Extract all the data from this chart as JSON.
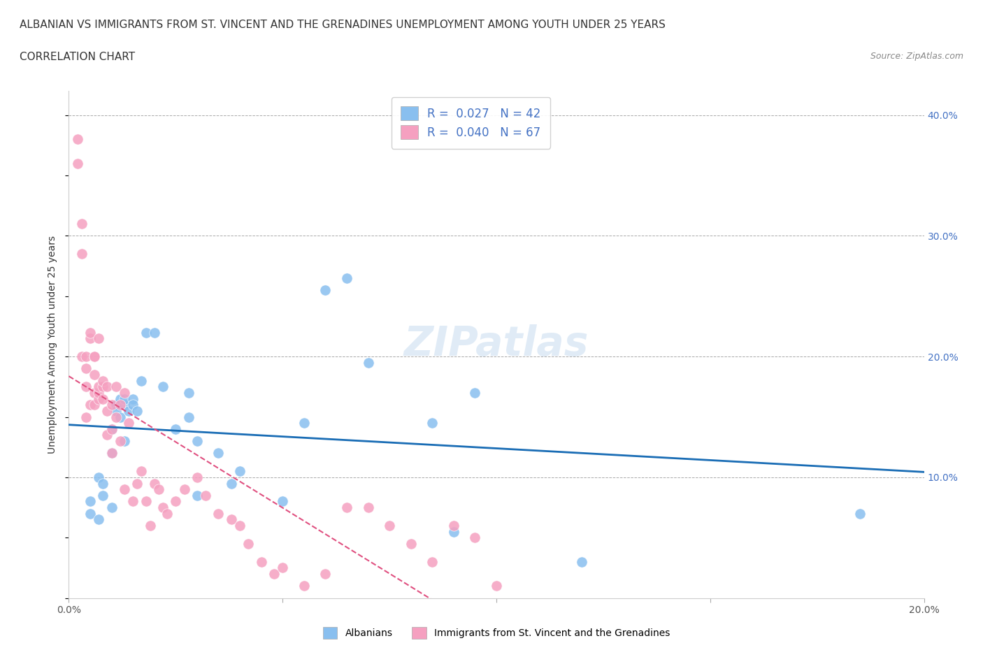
{
  "title_line1": "ALBANIAN VS IMMIGRANTS FROM ST. VINCENT AND THE GRENADINES UNEMPLOYMENT AMONG YOUTH UNDER 25 YEARS",
  "title_line2": "CORRELATION CHART",
  "source_text": "Source: ZipAtlas.com",
  "ylabel": "Unemployment Among Youth under 25 years",
  "xlim": [
    0.0,
    0.2
  ],
  "ylim": [
    0.0,
    0.42
  ],
  "xticks": [
    0.0,
    0.05,
    0.1,
    0.15,
    0.2
  ],
  "xtick_labels": [
    "0.0%",
    "",
    "",
    "",
    "20.0%"
  ],
  "ytick_labels_right": [
    "",
    "10.0%",
    "20.0%",
    "30.0%",
    "40.0%"
  ],
  "yticks": [
    0.0,
    0.1,
    0.2,
    0.3,
    0.4
  ],
  "color_albanian": "#89BFEF",
  "color_svg": "#F5A0C0",
  "line_color_albanian": "#1a6db5",
  "line_color_svg": "#e05080",
  "R_albanian": 0.027,
  "N_albanian": 42,
  "R_svg": 0.04,
  "N_svg": 67,
  "watermark": "ZIPatlas",
  "albanian_x": [
    0.005,
    0.005,
    0.007,
    0.007,
    0.008,
    0.008,
    0.01,
    0.01,
    0.01,
    0.011,
    0.011,
    0.012,
    0.012,
    0.013,
    0.013,
    0.013,
    0.014,
    0.015,
    0.015,
    0.016,
    0.017,
    0.018,
    0.02,
    0.022,
    0.025,
    0.028,
    0.028,
    0.03,
    0.03,
    0.035,
    0.038,
    0.04,
    0.05,
    0.055,
    0.06,
    0.065,
    0.07,
    0.085,
    0.09,
    0.095,
    0.12,
    0.185
  ],
  "albanian_y": [
    0.08,
    0.07,
    0.065,
    0.1,
    0.085,
    0.095,
    0.075,
    0.12,
    0.14,
    0.16,
    0.155,
    0.15,
    0.165,
    0.13,
    0.16,
    0.165,
    0.155,
    0.165,
    0.16,
    0.155,
    0.18,
    0.22,
    0.22,
    0.175,
    0.14,
    0.17,
    0.15,
    0.13,
    0.085,
    0.12,
    0.095,
    0.105,
    0.08,
    0.145,
    0.255,
    0.265,
    0.195,
    0.145,
    0.055,
    0.17,
    0.03,
    0.07
  ],
  "svgrenadin_x": [
    0.002,
    0.002,
    0.003,
    0.003,
    0.003,
    0.004,
    0.004,
    0.004,
    0.004,
    0.005,
    0.005,
    0.005,
    0.006,
    0.006,
    0.006,
    0.006,
    0.006,
    0.007,
    0.007,
    0.007,
    0.007,
    0.008,
    0.008,
    0.008,
    0.009,
    0.009,
    0.009,
    0.01,
    0.01,
    0.01,
    0.011,
    0.011,
    0.012,
    0.012,
    0.013,
    0.013,
    0.014,
    0.015,
    0.016,
    0.017,
    0.018,
    0.019,
    0.02,
    0.021,
    0.022,
    0.023,
    0.025,
    0.027,
    0.03,
    0.032,
    0.035,
    0.038,
    0.04,
    0.042,
    0.045,
    0.048,
    0.05,
    0.055,
    0.06,
    0.065,
    0.07,
    0.075,
    0.08,
    0.085,
    0.09,
    0.095,
    0.1
  ],
  "svgrenadin_y": [
    0.38,
    0.36,
    0.31,
    0.285,
    0.2,
    0.15,
    0.175,
    0.19,
    0.2,
    0.215,
    0.22,
    0.16,
    0.185,
    0.2,
    0.2,
    0.17,
    0.16,
    0.165,
    0.215,
    0.17,
    0.175,
    0.175,
    0.165,
    0.18,
    0.135,
    0.155,
    0.175,
    0.12,
    0.14,
    0.16,
    0.15,
    0.175,
    0.13,
    0.16,
    0.17,
    0.09,
    0.145,
    0.08,
    0.095,
    0.105,
    0.08,
    0.06,
    0.095,
    0.09,
    0.075,
    0.07,
    0.08,
    0.09,
    0.1,
    0.085,
    0.07,
    0.065,
    0.06,
    0.045,
    0.03,
    0.02,
    0.025,
    0.01,
    0.02,
    0.075,
    0.075,
    0.06,
    0.045,
    0.03,
    0.06,
    0.05,
    0.01
  ]
}
